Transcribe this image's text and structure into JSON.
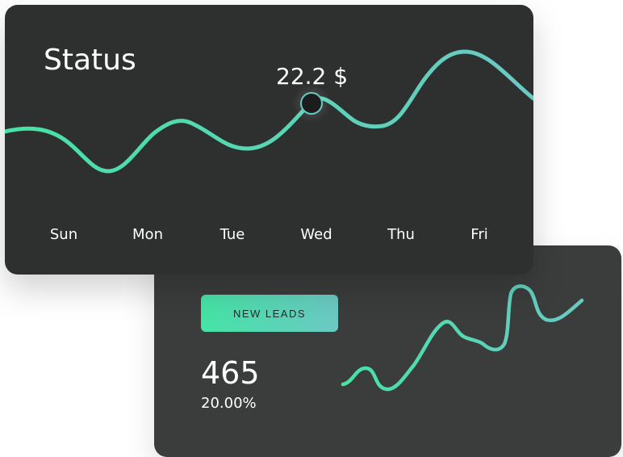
{
  "status_card": {
    "title": "Status",
    "tooltip": "22.2 $",
    "days": [
      "Sun",
      "Mon",
      "Tue",
      "Wed",
      "Thu",
      "Fri"
    ]
  },
  "leads_card": {
    "badge_label": "NEW LEADS",
    "count": "465",
    "percent": "20.00%"
  },
  "colors": {
    "accent_start": "#45e3a5",
    "accent_end": "#6cc8c3",
    "card_dark": "#2e3030",
    "card_mid": "#3b3d3d"
  }
}
